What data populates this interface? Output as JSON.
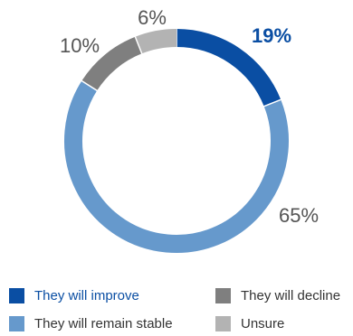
{
  "chart_data": {
    "type": "pie",
    "variant": "donut",
    "title": "",
    "categories": [
      "They will improve",
      "They will remain stable",
      "They will decline",
      "Unsure"
    ],
    "values": [
      19,
      65,
      10,
      6
    ],
    "labels": [
      "19%",
      "65%",
      "10%",
      "6%"
    ],
    "colors": [
      "#0a4ea3",
      "#6699cc",
      "#7f7f7f",
      "#b3b3b3"
    ],
    "label_colors": [
      "#0a4ea3",
      "#555555",
      "#555555",
      "#555555"
    ],
    "start_angle_deg": 0,
    "direction": "clockwise",
    "legend_position": "bottom",
    "legend_order": [
      "They will improve",
      "They will decline",
      "They will remain stable",
      "Unsure"
    ]
  }
}
